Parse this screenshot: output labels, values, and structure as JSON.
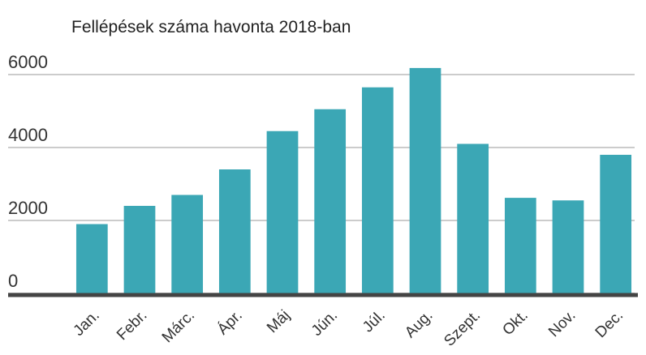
{
  "chart_data": {
    "type": "bar",
    "title": "Fellépések száma havonta 2018-ban",
    "categories": [
      "Jan.",
      "Febr.",
      "Márc.",
      "Ápr.",
      "Máj",
      "Jún.",
      "Júl.",
      "Aug.",
      "Szept.",
      "Okt.",
      "Nov.",
      "Dec."
    ],
    "values": [
      1900,
      2400,
      2700,
      3400,
      4450,
      5050,
      5650,
      6180,
      4100,
      2620,
      2550,
      3800
    ],
    "color": "#3ba7b5",
    "ylim": [
      0,
      6000
    ],
    "yticks": [
      0,
      2000,
      4000,
      6000
    ],
    "grid": true
  }
}
